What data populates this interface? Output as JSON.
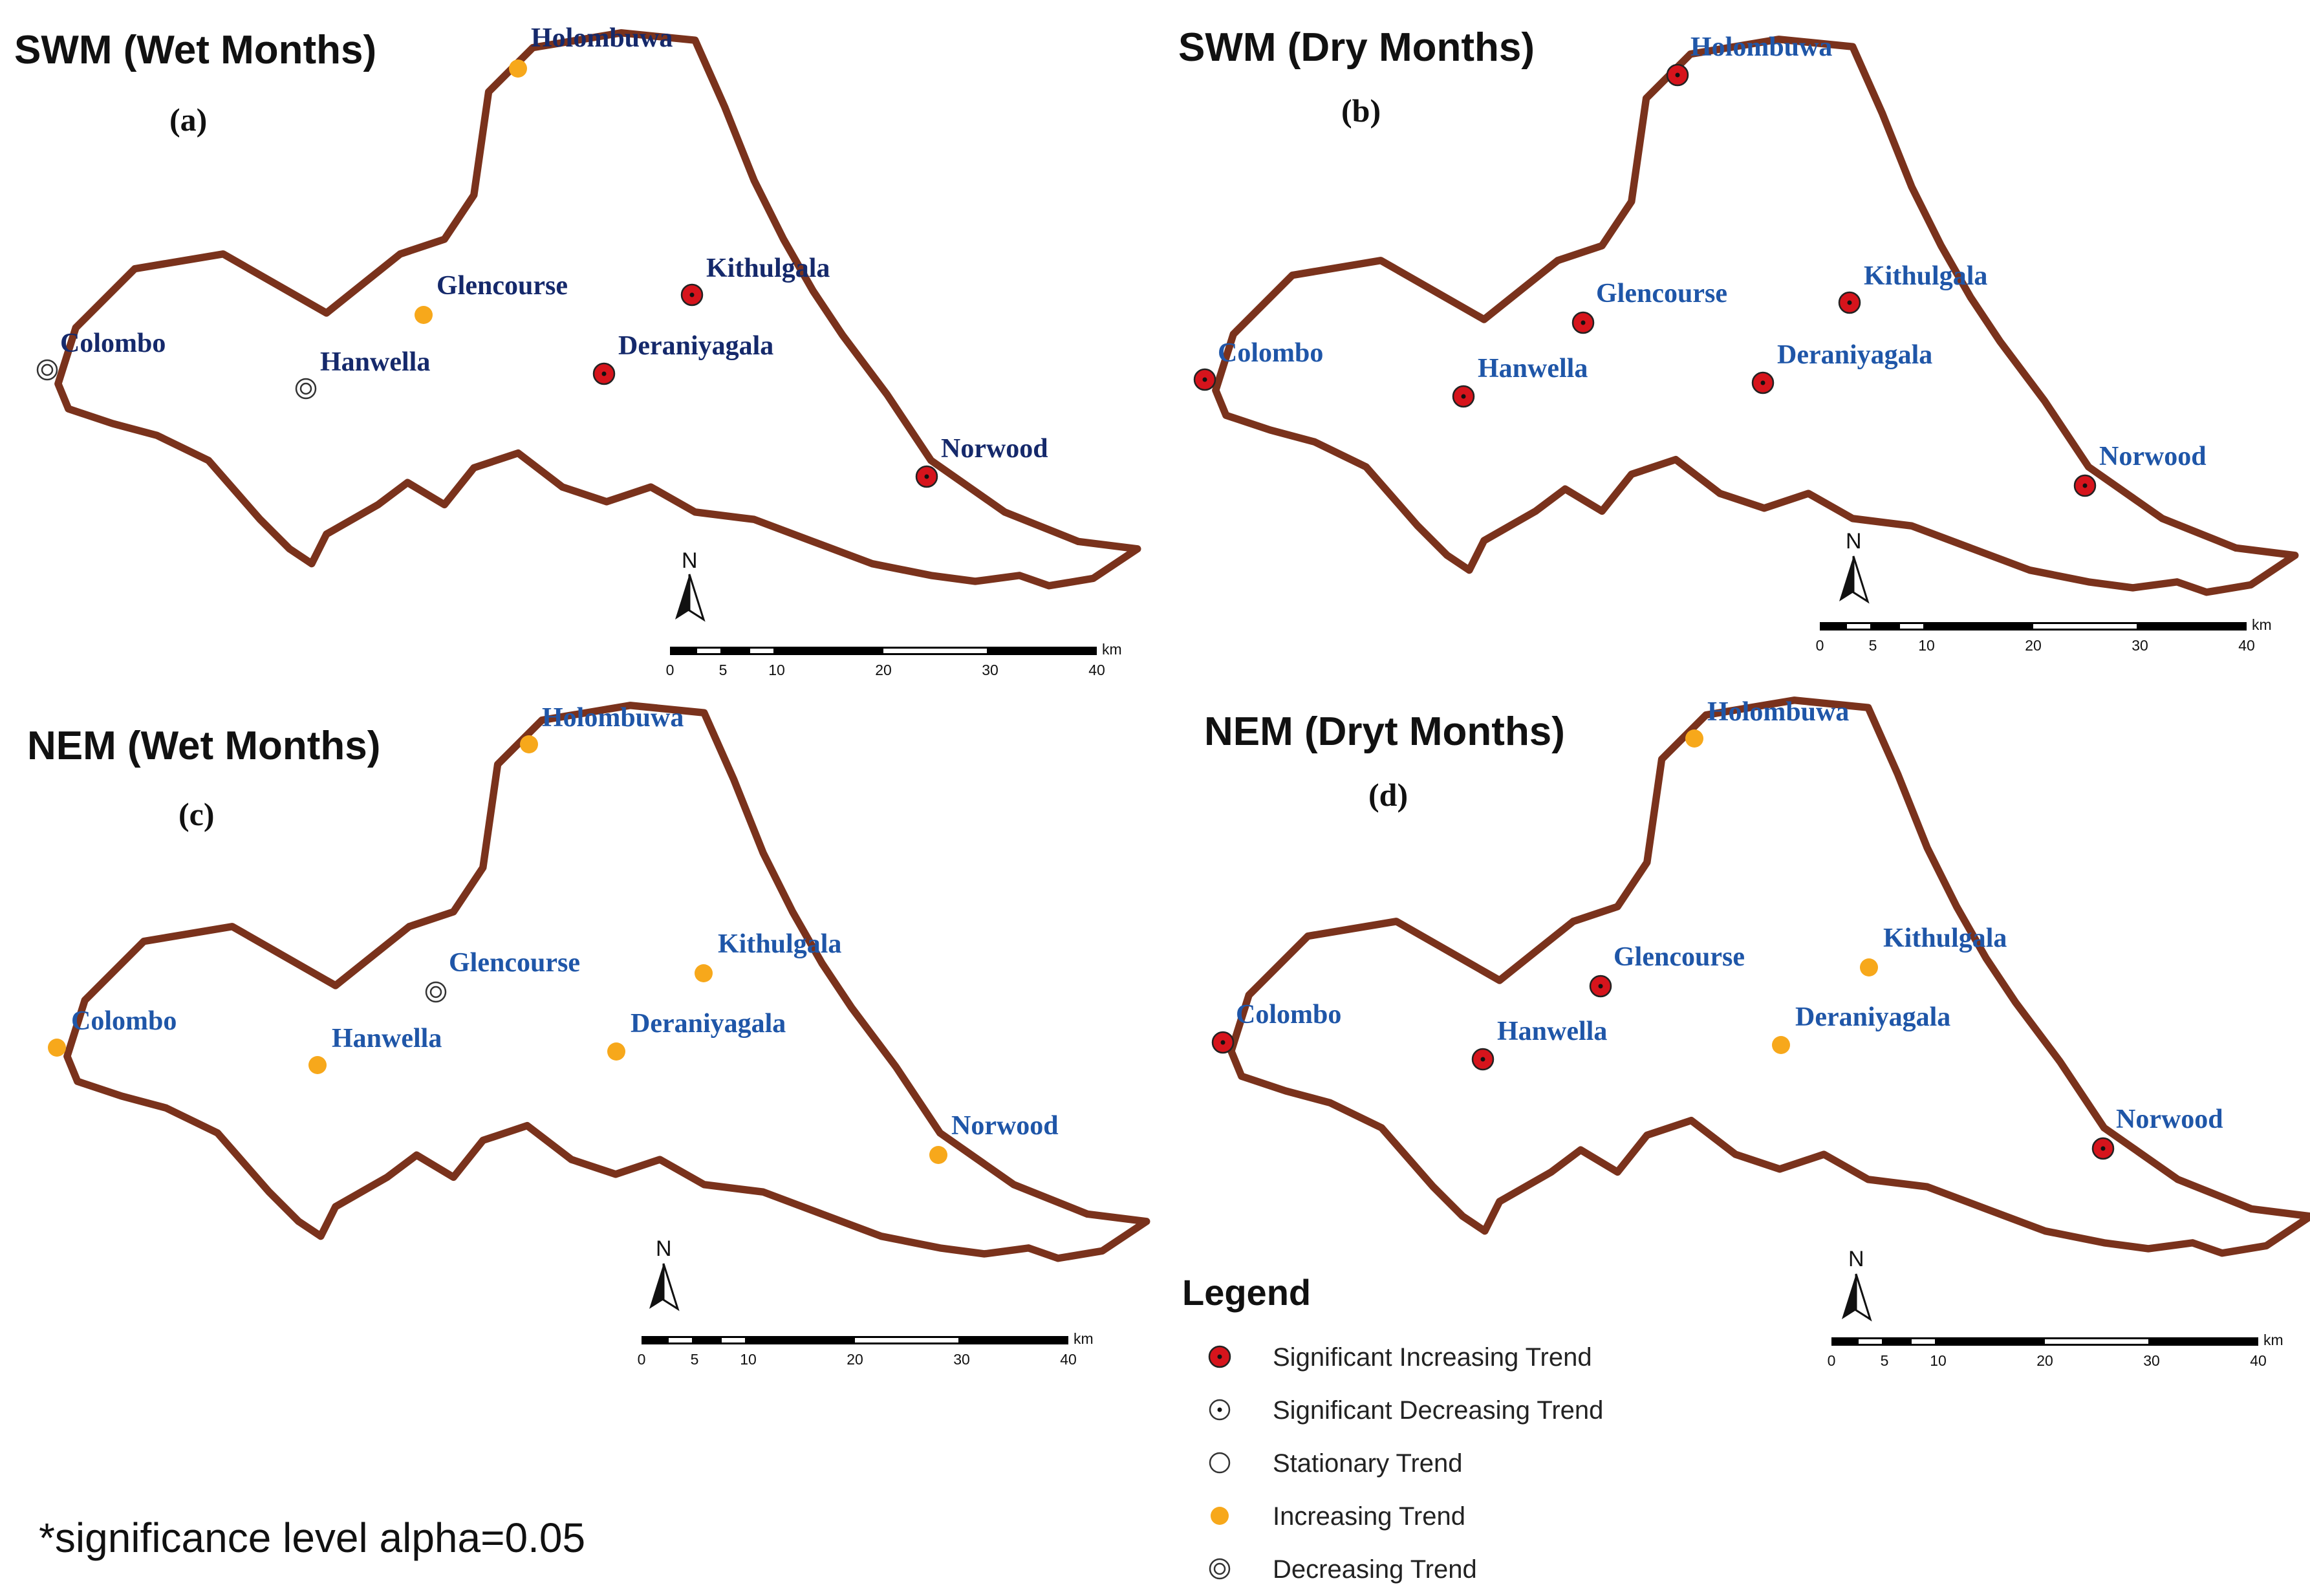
{
  "colors": {
    "increasing": "#f7a81b",
    "significant_increasing": "#d6141c",
    "marker_outline": "#222222",
    "boundary": "#7a321c",
    "label_dark": "#15296b",
    "label_blue": "#1f56a8"
  },
  "panels": [
    {
      "title": "SWM (Wet Months)",
      "letter": "(a)",
      "stations": {
        "holombuwa": {
          "name": "Holombuwa",
          "trend": "increasing"
        },
        "colombo": {
          "name": "Colombo",
          "trend": "decreasing"
        },
        "hanwella": {
          "name": "Hanwella",
          "trend": "decreasing"
        },
        "glencourse": {
          "name": "Glencourse",
          "trend": "increasing"
        },
        "kithulgala": {
          "name": "Kithulgala",
          "trend": "significant_increasing"
        },
        "deraniyagala": {
          "name": "Deraniyagala",
          "trend": "significant_increasing"
        },
        "norwood": {
          "name": "Norwood",
          "trend": "significant_increasing"
        }
      }
    },
    {
      "title": "SWM (Dry Months)",
      "letter": "(b)",
      "stations": {
        "holombuwa": {
          "name": "Holombuwa",
          "trend": "significant_increasing"
        },
        "colombo": {
          "name": "Colombo",
          "trend": "significant_increasing"
        },
        "hanwella": {
          "name": "Hanwella",
          "trend": "significant_increasing"
        },
        "glencourse": {
          "name": "Glencourse",
          "trend": "significant_increasing"
        },
        "kithulgala": {
          "name": "Kithulgala",
          "trend": "significant_increasing"
        },
        "deraniyagala": {
          "name": "Deraniyagala",
          "trend": "significant_increasing"
        },
        "norwood": {
          "name": "Norwood",
          "trend": "significant_increasing"
        }
      }
    },
    {
      "title": "NEM (Wet Months)",
      "letter": "(c)",
      "stations": {
        "holombuwa": {
          "name": "Holombuwa",
          "trend": "increasing"
        },
        "colombo": {
          "name": "Colombo",
          "trend": "increasing"
        },
        "hanwella": {
          "name": "Hanwella",
          "trend": "increasing"
        },
        "glencourse": {
          "name": "Glencourse",
          "trend": "decreasing"
        },
        "kithulgala": {
          "name": "Kithulgala",
          "trend": "increasing"
        },
        "deraniyagala": {
          "name": "Deraniyagala",
          "trend": "increasing"
        },
        "norwood": {
          "name": "Norwood",
          "trend": "increasing"
        }
      }
    },
    {
      "title": "NEM (Dryt Months)",
      "letter": "(d)",
      "stations": {
        "holombuwa": {
          "name": "Holombuwa",
          "trend": "increasing"
        },
        "colombo": {
          "name": "Colombo",
          "trend": "significant_increasing"
        },
        "hanwella": {
          "name": "Hanwella",
          "trend": "significant_increasing"
        },
        "glencourse": {
          "name": "Glencourse",
          "trend": "significant_increasing"
        },
        "kithulgala": {
          "name": "Kithulgala",
          "trend": "increasing"
        },
        "deraniyagala": {
          "name": "Deraniyagala",
          "trend": "increasing"
        },
        "norwood": {
          "name": "Norwood",
          "trend": "significant_increasing"
        }
      }
    }
  ],
  "scalebar": {
    "ticks": [
      "0",
      "5",
      "10",
      "20",
      "30",
      "40"
    ],
    "unit": "km"
  },
  "north_label": "N",
  "legend": {
    "title": "Legend",
    "items": [
      {
        "label": "Significant Increasing Trend",
        "symbol": "significant_increasing"
      },
      {
        "label": "Significant Decreasing Trend",
        "symbol": "significant_decreasing"
      },
      {
        "label": "Stationary Trend",
        "symbol": "stationary"
      },
      {
        "label": "Increasing Trend",
        "symbol": "increasing"
      },
      {
        "label": "Decreasing Trend",
        "symbol": "decreasing"
      }
    ]
  },
  "footnote": "*significance level alpha=0.05"
}
